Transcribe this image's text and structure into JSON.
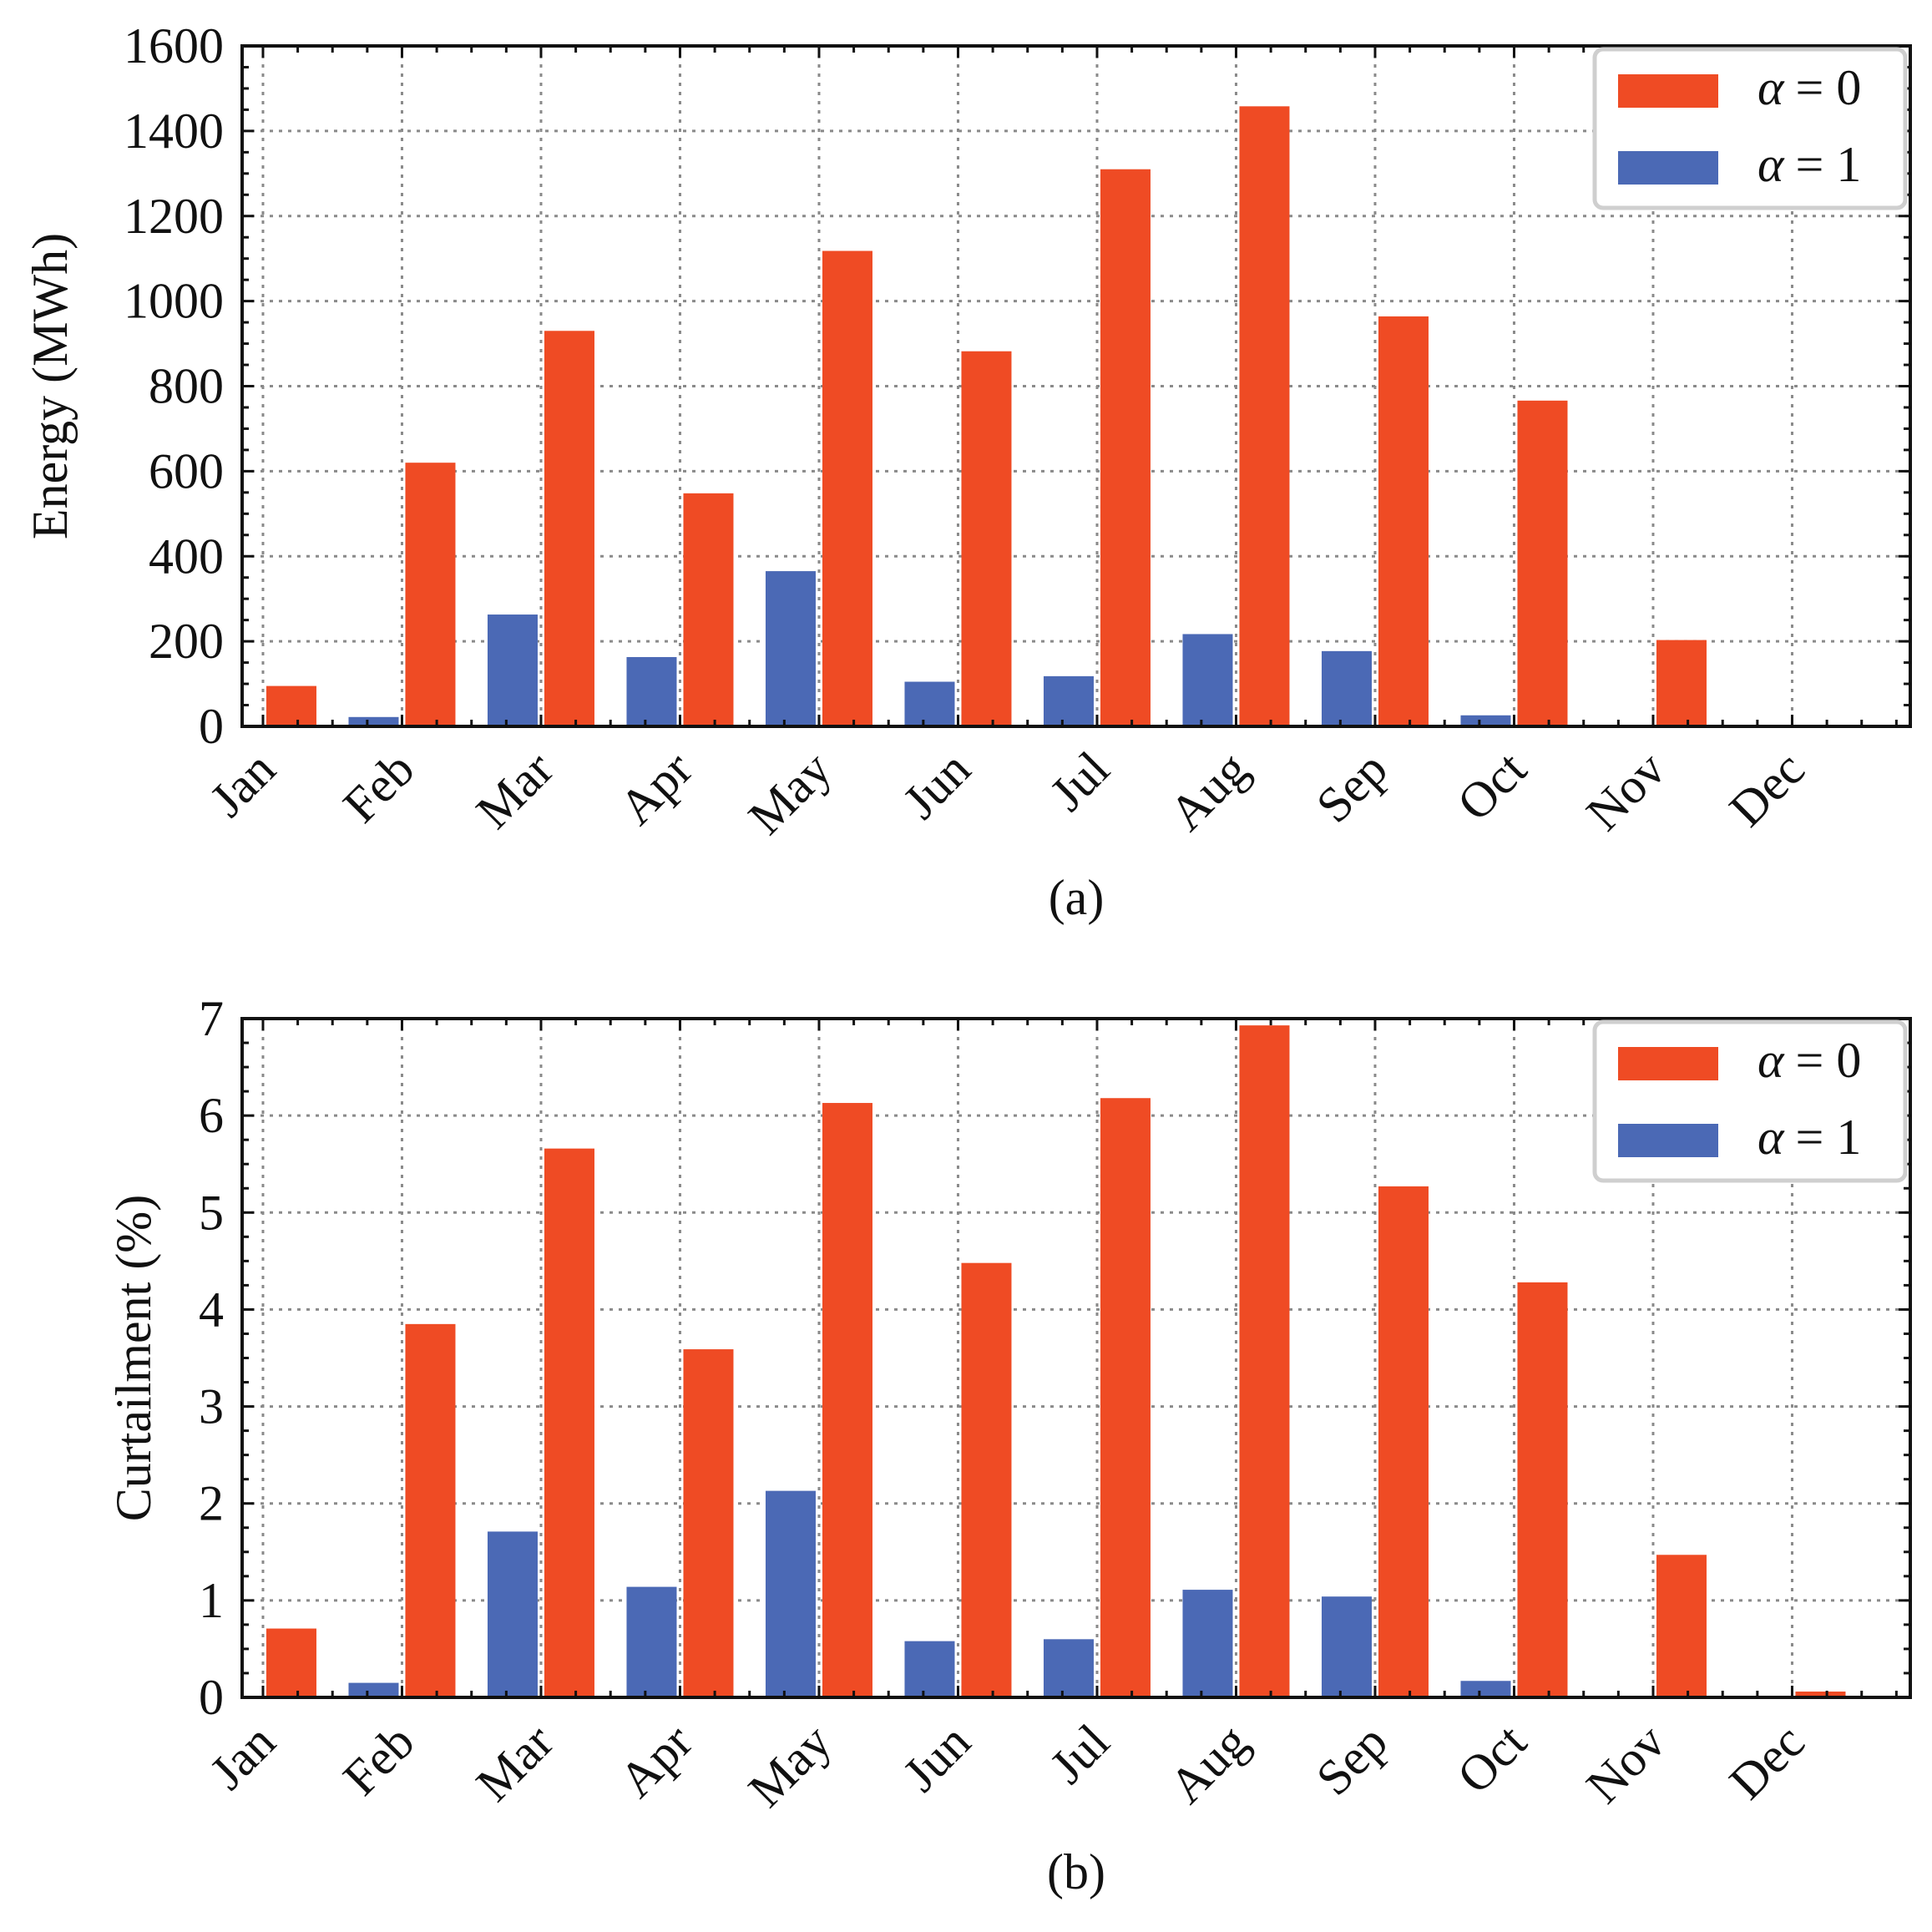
{
  "chart_data": [
    {
      "type": "bar",
      "panel": "a",
      "caption": "(a)",
      "categories": [
        "Jan",
        "Feb",
        "Mar",
        "Apr",
        "May",
        "Jun",
        "Jul",
        "Aug",
        "Sep",
        "Oct",
        "Nov",
        "Dec"
      ],
      "series": [
        {
          "name": "α = 0",
          "legend_symbol": "α",
          "legend_value": "= 0",
          "color": "#ef4b24",
          "values": [
            95,
            620,
            930,
            548,
            1118,
            882,
            1310,
            1458,
            964,
            766,
            203,
            0
          ]
        },
        {
          "name": "α = 1",
          "legend_symbol": "α",
          "legend_value": "= 1",
          "color": "#4b69b5",
          "values": [
            0,
            22,
            263,
            163,
            365,
            105,
            118,
            217,
            177,
            26,
            0,
            0
          ]
        }
      ],
      "ylabel": "Energy (MWh)",
      "xlabel": "",
      "ylim": [
        0,
        1600
      ],
      "yticks": [
        0,
        200,
        400,
        600,
        800,
        1000,
        1200,
        1400,
        1600
      ],
      "ytick_labels": [
        "0",
        "200",
        "400",
        "600",
        "800",
        "1000",
        "1200",
        "1400",
        "1600"
      ],
      "grid": true,
      "legend_position": "top-right"
    },
    {
      "type": "bar",
      "panel": "b",
      "caption": "(b)",
      "categories": [
        "Jan",
        "Feb",
        "Mar",
        "Apr",
        "May",
        "Jun",
        "Jul",
        "Aug",
        "Sep",
        "Oct",
        "Nov",
        "Dec"
      ],
      "series": [
        {
          "name": "α = 0",
          "legend_symbol": "α",
          "legend_value": "= 0",
          "color": "#ef4b24",
          "values": [
            0.71,
            3.85,
            5.66,
            3.59,
            6.13,
            4.48,
            6.18,
            6.93,
            5.27,
            4.28,
            1.47,
            0.06
          ]
        },
        {
          "name": "α = 1",
          "legend_symbol": "α",
          "legend_value": "= 1",
          "color": "#4b69b5",
          "values": [
            0,
            0.15,
            1.71,
            1.14,
            2.13,
            0.58,
            0.6,
            1.11,
            1.04,
            0.17,
            0,
            0
          ]
        }
      ],
      "ylabel": "Curtailment (%)",
      "xlabel": "",
      "ylim": [
        0,
        7
      ],
      "yticks": [
        0,
        1,
        2,
        3,
        4,
        5,
        6,
        7
      ],
      "ytick_labels": [
        "0",
        "1",
        "2",
        "3",
        "4",
        "5",
        "6",
        "7"
      ],
      "grid": true,
      "legend_position": "top-right"
    }
  ]
}
